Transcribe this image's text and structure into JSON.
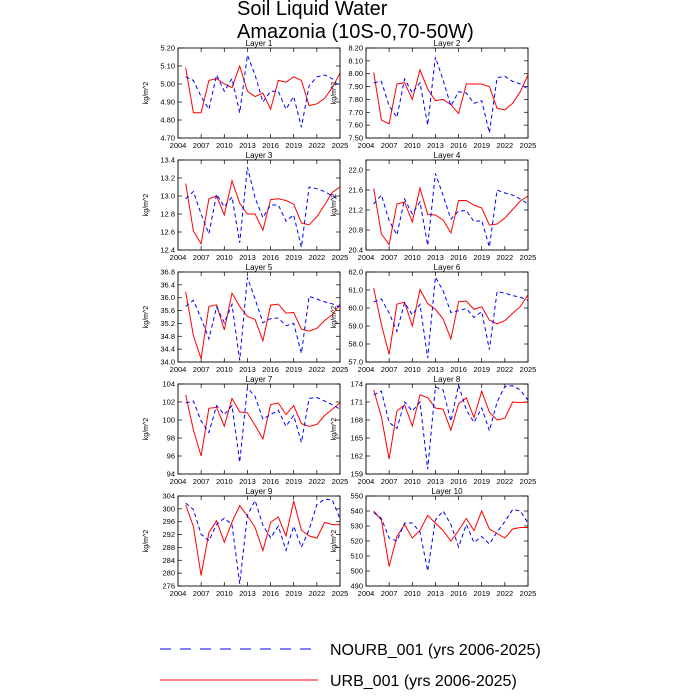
{
  "figure": {
    "title_line1": "Soil Liquid Water",
    "title_line2": "Amazonia (10S-0,70-50W)"
  },
  "colors": {
    "urb": "#ff0000",
    "nourb": "#0000ff",
    "axis": "#000000"
  },
  "legend": [
    {
      "key": "nourb",
      "label": "NOURB_001 (yrs 2006-2025)",
      "style": "dashed"
    },
    {
      "key": "urb",
      "label": "URB_001 (yrs 2006-2025)",
      "style": "solid"
    }
  ],
  "chart_data": [
    {
      "type": "line",
      "title": "Layer 1",
      "ylabel": "kg/m^2",
      "xlim": [
        2004,
        2025
      ],
      "xticks": [
        2004,
        2007,
        2010,
        2013,
        2016,
        2019,
        2022,
        2025
      ],
      "ylim": [
        4.7,
        5.2
      ],
      "yticks": [
        "4.70",
        "4.80",
        "4.90",
        "5.00",
        "5.10",
        "5.20"
      ],
      "x": [
        2005,
        2006,
        2007,
        2008,
        2009,
        2010,
        2011,
        2012,
        2013,
        2014,
        2015,
        2016,
        2017,
        2018,
        2019,
        2020,
        2021,
        2022,
        2023,
        2024,
        2025
      ],
      "series": [
        {
          "name": "URB_001",
          "values": [
            5.09,
            4.84,
            4.84,
            5.02,
            5.03,
            5.0,
            4.98,
            5.1,
            4.96,
            4.93,
            4.95,
            4.86,
            5.02,
            5.01,
            5.04,
            5.02,
            4.88,
            4.89,
            4.92,
            4.98,
            5.06
          ]
        },
        {
          "name": "NOURB_001",
          "values": [
            5.04,
            5.02,
            4.93,
            4.86,
            5.05,
            4.96,
            5.03,
            4.84,
            5.16,
            5.05,
            4.9,
            4.96,
            4.96,
            4.86,
            4.93,
            4.76,
            4.99,
            5.04,
            5.05,
            5.03,
            4.98
          ]
        }
      ]
    },
    {
      "type": "line",
      "title": "Layer 2",
      "ylabel": "kg/m^2",
      "xlim": [
        2004,
        2025
      ],
      "xticks": [
        2004,
        2007,
        2010,
        2013,
        2016,
        2019,
        2022,
        2025
      ],
      "ylim": [
        7.5,
        8.2
      ],
      "yticks": [
        "7.50",
        "7.60",
        "7.70",
        "7.80",
        "7.90",
        "8.00",
        "8.10",
        "8.20"
      ],
      "x": [
        2005,
        2006,
        2007,
        2008,
        2009,
        2010,
        2011,
        2012,
        2013,
        2014,
        2015,
        2016,
        2017,
        2018,
        2019,
        2020,
        2021,
        2022,
        2023,
        2024,
        2025
      ],
      "series": [
        {
          "name": "URB_001",
          "values": [
            8.01,
            7.64,
            7.61,
            7.92,
            7.93,
            7.8,
            8.03,
            7.88,
            7.79,
            7.8,
            7.76,
            7.69,
            7.92,
            7.92,
            7.92,
            7.9,
            7.73,
            7.72,
            7.77,
            7.86,
            7.99
          ]
        },
        {
          "name": "NOURB_001",
          "values": [
            7.93,
            7.94,
            7.75,
            7.66,
            7.96,
            7.85,
            7.93,
            7.6,
            8.13,
            7.95,
            7.75,
            7.86,
            7.85,
            7.77,
            7.79,
            7.54,
            7.97,
            7.98,
            7.94,
            7.92,
            7.88
          ]
        }
      ]
    },
    {
      "type": "line",
      "title": "Layer 3",
      "ylabel": "kg/m^2",
      "xlim": [
        2004,
        2025
      ],
      "xticks": [
        2004,
        2007,
        2010,
        2013,
        2016,
        2019,
        2022,
        2025
      ],
      "ylim": [
        12.4,
        13.4
      ],
      "yticks": [
        "12.4",
        "12.6",
        "12.8",
        "13.0",
        "13.2",
        "13.4"
      ],
      "x": [
        2005,
        2006,
        2007,
        2008,
        2009,
        2010,
        2011,
        2012,
        2013,
        2014,
        2015,
        2016,
        2017,
        2018,
        2019,
        2020,
        2021,
        2022,
        2023,
        2024,
        2025
      ],
      "series": [
        {
          "name": "URB_001",
          "values": [
            13.14,
            12.61,
            12.47,
            12.97,
            13.0,
            12.79,
            13.17,
            12.92,
            12.8,
            12.8,
            12.62,
            12.96,
            12.97,
            12.95,
            12.91,
            12.7,
            12.68,
            12.77,
            12.9,
            13.04,
            13.1
          ]
        },
        {
          "name": "NOURB_001",
          "values": [
            12.97,
            13.05,
            12.8,
            12.58,
            13.02,
            12.88,
            12.99,
            12.48,
            13.32,
            12.98,
            12.76,
            12.9,
            12.9,
            12.72,
            12.79,
            12.43,
            13.1,
            13.08,
            13.05,
            13.0,
            12.95
          ]
        }
      ]
    },
    {
      "type": "line",
      "title": "Layer 4",
      "ylabel": "kg/m^2",
      "xlim": [
        2004,
        2025
      ],
      "xticks": [
        2004,
        2007,
        2010,
        2013,
        2016,
        2019,
        2022,
        2025
      ],
      "ylim": [
        20.4,
        22.2
      ],
      "yticks": [
        "20.4",
        "20.8",
        "21.2",
        "21.6",
        "22.0"
      ],
      "x": [
        2005,
        2006,
        2007,
        2008,
        2009,
        2010,
        2011,
        2012,
        2013,
        2014,
        2015,
        2016,
        2017,
        2018,
        2019,
        2020,
        2021,
        2022,
        2023,
        2024,
        2025
      ],
      "series": [
        {
          "name": "URB_001",
          "values": [
            21.63,
            20.72,
            20.51,
            21.32,
            21.36,
            20.96,
            21.64,
            21.11,
            21.1,
            21.0,
            20.74,
            21.39,
            21.39,
            21.3,
            21.24,
            20.9,
            20.92,
            21.04,
            21.21,
            21.38,
            21.48
          ]
        },
        {
          "name": "NOURB_001",
          "values": [
            21.32,
            21.5,
            20.99,
            20.7,
            21.42,
            21.12,
            21.36,
            20.49,
            21.93,
            21.49,
            21.02,
            21.18,
            21.19,
            20.97,
            20.99,
            20.46,
            21.6,
            21.54,
            21.5,
            21.42,
            21.32
          ]
        }
      ]
    },
    {
      "type": "line",
      "title": "Layer 5",
      "ylabel": "kg/m^2",
      "xlim": [
        2004,
        2025
      ],
      "xticks": [
        2004,
        2007,
        2010,
        2013,
        2016,
        2019,
        2022,
        2025
      ],
      "ylim": [
        34.0,
        36.8
      ],
      "yticks": [
        "34.0",
        "34.4",
        "34.8",
        "35.2",
        "35.6",
        "36.0",
        "36.4",
        "36.8"
      ],
      "x": [
        2005,
        2006,
        2007,
        2008,
        2009,
        2010,
        2011,
        2012,
        2013,
        2014,
        2015,
        2016,
        2017,
        2018,
        2019,
        2020,
        2021,
        2022,
        2023,
        2024,
        2025
      ],
      "series": [
        {
          "name": "URB_001",
          "values": [
            36.18,
            34.82,
            34.1,
            35.73,
            35.78,
            35.0,
            36.14,
            35.73,
            35.42,
            35.32,
            34.66,
            35.77,
            35.8,
            35.52,
            35.54,
            35.02,
            34.96,
            35.05,
            35.29,
            35.47,
            35.8
          ]
        },
        {
          "name": "NOURB_001",
          "values": [
            35.73,
            35.92,
            35.36,
            34.72,
            35.71,
            35.22,
            35.79,
            34.05,
            36.63,
            35.96,
            35.22,
            35.35,
            35.37,
            35.13,
            35.2,
            34.27,
            36.04,
            35.96,
            35.87,
            35.81,
            35.7
          ]
        }
      ]
    },
    {
      "type": "line",
      "title": "Layer 6",
      "ylabel": "kg/m^2",
      "xlim": [
        2004,
        2025
      ],
      "xticks": [
        2004,
        2007,
        2010,
        2013,
        2016,
        2019,
        2022,
        2025
      ],
      "ylim": [
        57.0,
        62.0
      ],
      "yticks": [
        "57.0",
        "58.0",
        "59.0",
        "60.0",
        "61.0",
        "62.0"
      ],
      "x": [
        2005,
        2006,
        2007,
        2008,
        2009,
        2010,
        2011,
        2012,
        2013,
        2014,
        2015,
        2016,
        2017,
        2018,
        2019,
        2020,
        2021,
        2022,
        2023,
        2024,
        2025
      ],
      "series": [
        {
          "name": "URB_001",
          "values": [
            61.1,
            59.08,
            57.42,
            60.21,
            60.32,
            59.0,
            61.02,
            60.24,
            59.93,
            59.4,
            58.28,
            60.35,
            60.39,
            59.92,
            60.07,
            59.33,
            59.12,
            59.3,
            59.7,
            60.08,
            60.73
          ]
        },
        {
          "name": "NOURB_001",
          "values": [
            60.34,
            60.5,
            59.72,
            58.7,
            60.3,
            59.62,
            60.2,
            57.22,
            61.72,
            60.96,
            59.75,
            59.85,
            59.97,
            59.48,
            59.8,
            57.69,
            60.91,
            60.83,
            60.69,
            60.6,
            60.42
          ]
        }
      ]
    },
    {
      "type": "line",
      "title": "Layer 7",
      "ylabel": "kg/m^2",
      "xlim": [
        2004,
        2025
      ],
      "xticks": [
        2004,
        2007,
        2010,
        2013,
        2016,
        2019,
        2022,
        2025
      ],
      "ylim": [
        94,
        104
      ],
      "yticks": [
        "94",
        "96",
        "98",
        "100",
        "102",
        "104"
      ],
      "x": [
        2005,
        2006,
        2007,
        2008,
        2009,
        2010,
        2011,
        2012,
        2013,
        2014,
        2015,
        2016,
        2017,
        2018,
        2019,
        2020,
        2021,
        2022,
        2023,
        2024,
        2025
      ],
      "series": [
        {
          "name": "URB_001",
          "values": [
            102.8,
            98.9,
            96.0,
            101.3,
            101.4,
            99.3,
            102.4,
            100.9,
            100.8,
            99.4,
            97.9,
            101.7,
            101.9,
            100.6,
            101.6,
            99.6,
            99.3,
            99.5,
            100.5,
            101.2,
            101.9
          ]
        },
        {
          "name": "NOURB_001",
          "values": [
            101.9,
            102.1,
            99.9,
            98.6,
            101.6,
            100.6,
            101.6,
            95.3,
            103.6,
            102.6,
            100.1,
            100.6,
            101.1,
            99.3,
            100.5,
            97.5,
            102.4,
            102.5,
            102.1,
            101.7,
            101.2
          ]
        }
      ]
    },
    {
      "type": "line",
      "title": "Layer 8",
      "ylabel": "kg/m^2",
      "xlim": [
        2004,
        2025
      ],
      "xticks": [
        2004,
        2007,
        2010,
        2013,
        2016,
        2019,
        2022,
        2025
      ],
      "ylim": [
        159,
        174
      ],
      "yticks": [
        "159",
        "162",
        "165",
        "168",
        "171",
        "174"
      ],
      "x": [
        2005,
        2006,
        2007,
        2008,
        2009,
        2010,
        2011,
        2012,
        2013,
        2014,
        2015,
        2016,
        2017,
        2018,
        2019,
        2020,
        2021,
        2022,
        2023,
        2024,
        2025
      ],
      "series": [
        {
          "name": "URB_001",
          "values": [
            173.0,
            168.5,
            161.5,
            169.5,
            170.5,
            167.0,
            172.2,
            171.7,
            170.0,
            169.8,
            166.3,
            170.7,
            171.7,
            168.4,
            172.8,
            169.3,
            168.0,
            168.3,
            171.0,
            170.9,
            171.0
          ]
        },
        {
          "name": "NOURB_001",
          "values": [
            172.2,
            172.8,
            167.6,
            166.6,
            171.0,
            169.5,
            171.0,
            159.8,
            173.5,
            173.0,
            167.8,
            173.8,
            169.7,
            167.6,
            170.0,
            166.2,
            171.0,
            173.6,
            173.7,
            173.0,
            171.3
          ]
        }
      ]
    },
    {
      "type": "line",
      "title": "Layer 9",
      "ylabel": "kg/m^2",
      "xlim": [
        2004,
        2025
      ],
      "xticks": [
        2004,
        2007,
        2010,
        2013,
        2016,
        2019,
        2022,
        2025
      ],
      "ylim": [
        276,
        304
      ],
      "yticks": [
        "276",
        "280",
        "284",
        "288",
        "292",
        "296",
        "300",
        "304"
      ],
      "x": [
        2005,
        2006,
        2007,
        2008,
        2009,
        2010,
        2011,
        2012,
        2013,
        2014,
        2015,
        2016,
        2017,
        2018,
        2019,
        2020,
        2021,
        2022,
        2023,
        2024,
        2025
      ],
      "series": [
        {
          "name": "URB_001",
          "values": [
            301.2,
            294.5,
            279.3,
            292.6,
            296.3,
            289.6,
            295.9,
            301.0,
            297.8,
            294.2,
            287.0,
            295.8,
            297.5,
            291.6,
            302.4,
            293.4,
            291.6,
            290.9,
            295.8,
            295.1,
            295.1
          ]
        },
        {
          "name": "NOURB_001",
          "values": [
            301.8,
            299.8,
            292.1,
            290.1,
            295.2,
            297.1,
            295.1,
            276.7,
            298.0,
            302.6,
            294.9,
            291.0,
            294.6,
            287.1,
            294.6,
            288.1,
            293.5,
            301.4,
            303.0,
            302.8,
            296.9
          ]
        }
      ]
    },
    {
      "type": "line",
      "title": "Layer 10",
      "ylabel": "kg/m^2",
      "xlim": [
        2004,
        2025
      ],
      "xticks": [
        2004,
        2007,
        2010,
        2013,
        2016,
        2019,
        2022,
        2025
      ],
      "ylim": [
        490,
        550
      ],
      "yticks": [
        "490",
        "500",
        "510",
        "520",
        "530",
        "540",
        "550"
      ],
      "x": [
        2005,
        2006,
        2007,
        2008,
        2009,
        2010,
        2011,
        2012,
        2013,
        2014,
        2015,
        2016,
        2017,
        2018,
        2019,
        2020,
        2021,
        2022,
        2023,
        2024,
        2025
      ],
      "series": [
        {
          "name": "URB_001",
          "values": [
            540,
            534,
            503,
            523,
            531,
            522,
            527,
            537,
            532,
            527,
            520,
            527,
            535,
            527,
            540,
            528,
            525,
            522,
            528,
            529,
            529
          ]
        },
        {
          "name": "NOURB_001",
          "values": [
            539,
            535,
            522,
            520,
            532,
            532,
            526,
            500,
            534,
            540,
            531,
            516,
            531,
            519,
            523,
            518,
            526,
            533,
            541,
            540,
            532
          ]
        }
      ]
    }
  ]
}
